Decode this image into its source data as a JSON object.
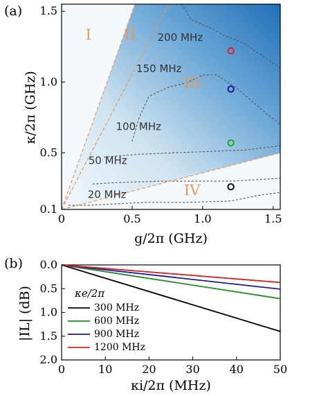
{
  "chart_data": [
    {
      "panel": "(a)",
      "type": "heatmap",
      "title": "",
      "xlabel": "g/2π (GHz)",
      "ylabel": "κ/2π (GHz)",
      "xlim": [
        0,
        1.55
      ],
      "ylim": [
        0.1,
        1.55
      ],
      "xticks": [
        0,
        0.5,
        1.0,
        1.5
      ],
      "xtick_labels": [
        "0",
        "0.5",
        "1.0",
        "1.5"
      ],
      "yticks": [
        0.1,
        0.5,
        1.0,
        1.5
      ],
      "ytick_labels": [
        "0.1",
        "0.5",
        "1.0",
        "1.5"
      ],
      "colors": {
        "light": "#eef6fa",
        "dark": "#1f6fb8",
        "contour": "#555555",
        "boundary": "#e8975a"
      },
      "contours": [
        {
          "label": "20 MHz",
          "label_pos": [
            0.37,
            0.18
          ],
          "points": [
            [
              0.05,
              0.13
            ],
            [
              0.2,
              0.13
            ],
            [
              0.4,
              0.14
            ],
            [
              0.6,
              0.15
            ],
            [
              0.9,
              0.15
            ],
            [
              1.2,
              0.16
            ],
            [
              1.4,
              0.2
            ],
            [
              1.55,
              0.22
            ]
          ]
        },
        {
          "label": "50 MHz",
          "label_pos": [
            0.38,
            0.42
          ],
          "points": [
            [
              0.22,
              0.28
            ],
            [
              0.4,
              0.29
            ],
            [
              0.7,
              0.3
            ],
            [
              1.0,
              0.3
            ],
            [
              1.2,
              0.3
            ],
            [
              1.55,
              0.32
            ]
          ]
        },
        {
          "label": "100 MHz",
          "label_pos": [
            0.77,
            0.66
          ],
          "points": [
            [
              0.3,
              0.47
            ],
            [
              0.55,
              0.49
            ],
            [
              0.8,
              0.5
            ],
            [
              1.05,
              0.51
            ],
            [
              1.3,
              0.52
            ],
            [
              1.55,
              0.55
            ]
          ]
        },
        {
          "label": "150 MHz",
          "label_pos": [
            1.06,
            1.07
          ],
          "points": [
            [
              0.5,
              0.58
            ],
            [
              0.55,
              0.75
            ],
            [
              0.62,
              0.9
            ],
            [
              0.75,
              0.96
            ],
            [
              0.9,
              1.0
            ],
            [
              1.0,
              1.05
            ],
            [
              1.1,
              1.05
            ],
            [
              1.25,
              0.95
            ],
            [
              1.4,
              0.82
            ],
            [
              1.55,
              0.7
            ]
          ]
        },
        {
          "label": "200 MHz",
          "label_pos": [
            1.36,
            1.29
          ],
          "points": [
            [
              0.85,
              1.55
            ],
            [
              0.92,
              1.44
            ],
            [
              1.08,
              1.37
            ],
            [
              1.15,
              1.33
            ],
            [
              1.3,
              1.27
            ],
            [
              1.4,
              1.2
            ],
            [
              1.55,
              1.1
            ]
          ]
        }
      ],
      "boundary_lines": [
        {
          "from": [
            0,
            0.1
          ],
          "to": [
            0.52,
            1.55
          ]
        },
        {
          "from": [
            0,
            0.1
          ],
          "to": [
            0.76,
            1.55
          ]
        },
        {
          "from": [
            0,
            0.1
          ],
          "to": [
            1.55,
            0.5
          ]
        }
      ],
      "regions": [
        {
          "label": "I",
          "pos": [
            0.38,
            1.3
          ]
        },
        {
          "label": "II",
          "pos": [
            0.97,
            1.3
          ]
        },
        {
          "label": "III",
          "pos": [
            1.85,
            0.96
          ]
        },
        {
          "label": "IV",
          "pos": [
            1.85,
            0.2
          ]
        }
      ],
      "markers": [
        {
          "x": 1.2,
          "y": 1.22,
          "color": "#e0202a"
        },
        {
          "x": 1.2,
          "y": 0.95,
          "color": "#1a1a9a"
        },
        {
          "x": 1.2,
          "y": 0.57,
          "color": "#22a822"
        },
        {
          "x": 1.2,
          "y": 0.26,
          "color": "#111111"
        }
      ]
    },
    {
      "panel": "(b)",
      "type": "line",
      "title": "",
      "xlabel": "κi/2π (MHz)",
      "ylabel": "|IL| (dB)",
      "xlim": [
        0,
        50
      ],
      "ylim": [
        2.0,
        0.0
      ],
      "xticks": [
        0,
        10,
        20,
        30,
        40,
        50
      ],
      "xtick_labels": [
        "0",
        "10",
        "20",
        "30",
        "40",
        "50"
      ],
      "yticks": [
        0.0,
        0.5,
        1.0,
        1.5,
        2.0
      ],
      "ytick_labels": [
        "0.0",
        "0.5",
        "1.0",
        "1.5",
        "2.0"
      ],
      "legend_title": "κe/2π",
      "legend_position": "bottom-left",
      "x": [
        0,
        50
      ],
      "series": [
        {
          "name": "300 MHz",
          "color": "#000000",
          "values": [
            0,
            1.4
          ]
        },
        {
          "name": "600 MHz",
          "color": "#1e8c1e",
          "values": [
            0,
            0.71
          ]
        },
        {
          "name": "900 MHz",
          "color": "#1a1aa0",
          "values": [
            0,
            0.51
          ]
        },
        {
          "name": "1200 MHz",
          "color": "#e02020",
          "values": [
            0,
            0.37
          ]
        }
      ]
    }
  ]
}
